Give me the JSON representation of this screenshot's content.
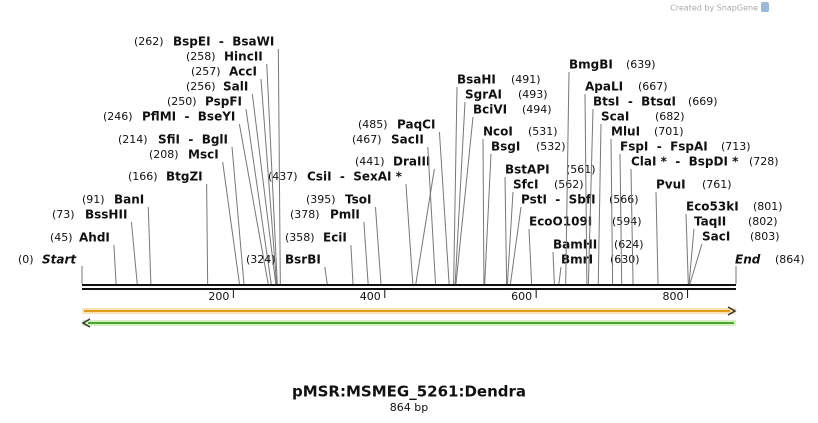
{
  "header": {
    "credit": "Created by SnapGene"
  },
  "map": {
    "title": "pMSR:MSMEG_5261:Dendra",
    "length": "864 bp",
    "start": {
      "name": "Start",
      "position": "(0)"
    },
    "end": {
      "name": "End",
      "position": "(864)"
    },
    "ticks": [
      "200",
      "400",
      "600",
      "800"
    ],
    "sites": [
      {
        "name": "BspEI  -  BsaWI",
        "position": "(262)"
      },
      {
        "name": "HincII",
        "position": "(258)"
      },
      {
        "name": "AccI",
        "position": "(257)"
      },
      {
        "name": "SalI",
        "position": "(256)"
      },
      {
        "name": "PspFI",
        "position": "(250)"
      },
      {
        "name": "PflMI  -  BseYI",
        "position": "(246)"
      },
      {
        "name": "SfiI  -  BglI",
        "position": "(214)"
      },
      {
        "name": "MscI",
        "position": "(208)"
      },
      {
        "name": "BtgZI",
        "position": "(166)"
      },
      {
        "name": "BanI",
        "position": "(91)"
      },
      {
        "name": "BssHII",
        "position": "(73)"
      },
      {
        "name": "AhdI",
        "position": "(45)"
      },
      {
        "name": "BsrBI",
        "position": "(324)"
      },
      {
        "name": "EciI",
        "position": "(358)"
      },
      {
        "name": "PmlI",
        "position": "(378)"
      },
      {
        "name": "TsoI",
        "position": "(395)"
      },
      {
        "name": "CsiI  -  SexAI *",
        "position": "(437)"
      },
      {
        "name": "DraIII",
        "position": "(441)"
      },
      {
        "name": "SacII",
        "position": "(467)"
      },
      {
        "name": "PaqCI",
        "position": "(485)"
      },
      {
        "name": "BsaHI",
        "position": "(491)"
      },
      {
        "name": "SgrAI",
        "position": "(493)"
      },
      {
        "name": "BciVI",
        "position": "(494)"
      },
      {
        "name": "NcoI",
        "position": "(531)"
      },
      {
        "name": "BsgI",
        "position": "(532)"
      },
      {
        "name": "BstAPI",
        "position": "(561)"
      },
      {
        "name": "SfcI",
        "position": "(562)"
      },
      {
        "name": "PstI  -  SbfI",
        "position": "(566)"
      },
      {
        "name": "EcoO109I",
        "position": "(594)"
      },
      {
        "name": "BamHI",
        "position": "(624)"
      },
      {
        "name": "BmrI",
        "position": "(630)"
      },
      {
        "name": "BmgBI",
        "position": "(639)"
      },
      {
        "name": "ApaLI",
        "position": "(667)"
      },
      {
        "name": "BtsI  -  BtsαI",
        "position": "(669)"
      },
      {
        "name": "ScaI",
        "position": "(682)"
      },
      {
        "name": "MluI",
        "position": "(701)"
      },
      {
        "name": "FspI  -  FspAI",
        "position": "(713)"
      },
      {
        "name": "ClaI *  -  BspDI *",
        "position": "(728)"
      },
      {
        "name": "PvuI",
        "position": "(761)"
      },
      {
        "name": "Eco53kI",
        "position": "(801)"
      },
      {
        "name": "TaqII",
        "position": "(802)"
      },
      {
        "name": "SacI",
        "position": "(803)"
      }
    ]
  }
}
